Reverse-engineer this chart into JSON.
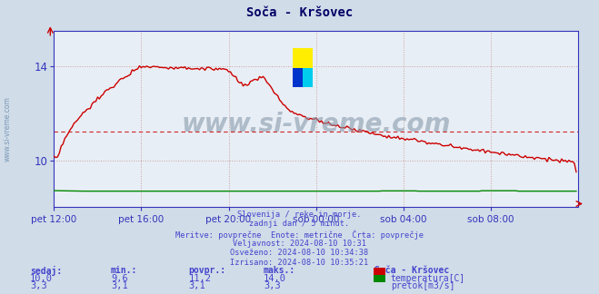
{
  "title": "Soča - Kršovec",
  "bg_color": "#d0dce8",
  "plot_bg_color": "#e8eef5",
  "grid_color": "#c8a0a0",
  "temp_color": "#cc0000",
  "flow_color": "#008800",
  "avg_temp": 11.2,
  "temp_min": 9.6,
  "temp_max": 14.0,
  "temp_current": 10.0,
  "flow_min": 3.1,
  "flow_max": 3.3,
  "flow_current": 3.3,
  "flow_avg": 3.1,
  "ylim": [
    8.0,
    15.5
  ],
  "ylim_flow": [
    0,
    35
  ],
  "yticks": [
    10,
    14
  ],
  "n_points": 288,
  "xtick_positions": [
    0,
    48,
    96,
    144,
    192,
    240
  ],
  "xtick_labels": [
    "pet 12:00",
    "pet 16:00",
    "pet 20:00",
    "sob 00:00",
    "sob 04:00",
    "sob 08:00"
  ],
  "watermark": "www.si-vreme.com",
  "watermark_color": "#8899aa",
  "info_lines": [
    "Slovenija / reke in morje.",
    "zadnji dan / 5 minut.",
    "Meritve: povprečne  Enote: metrične  Črta: povprečje",
    "Veljavnost: 2024-08-10 10:31",
    "Osveženo: 2024-08-10 10:34:38",
    "Izrisano: 2024-08-10 10:35:21"
  ],
  "legend_title": "Soča - Kršovec",
  "legend_items": [
    "temperatura[C]",
    "pretok[m3/s]"
  ],
  "table_headers": [
    "sedaj:",
    "min.:",
    "povpr.:",
    "maks.:"
  ],
  "table_temp": [
    "10,0",
    "9,6",
    "11,2",
    "14,0"
  ],
  "table_flow": [
    "3,3",
    "3,1",
    "3,1",
    "3,3"
  ],
  "axis_color": "#3333bb",
  "text_color": "#4444cc",
  "title_color": "#000066",
  "sidewatermark_color": "#6688aa"
}
